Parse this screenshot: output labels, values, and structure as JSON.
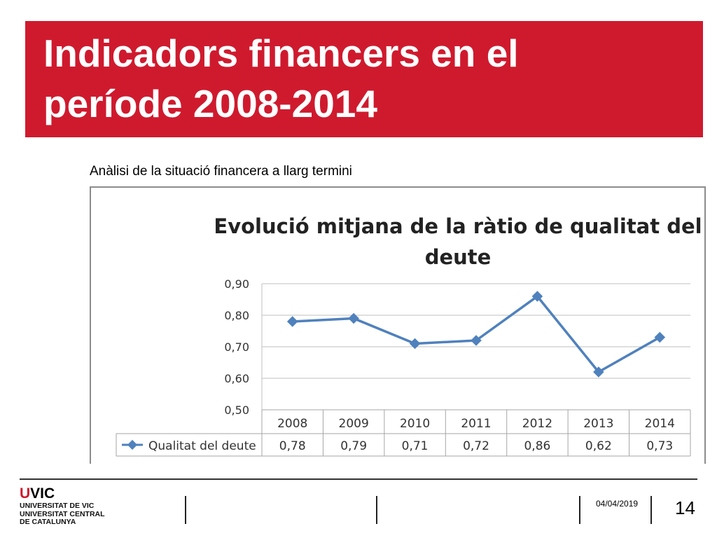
{
  "slide": {
    "title_line1": "Indicadors financers en el",
    "title_line2": "període 2008-2014",
    "subtitle": "Anàlisi de la situació financera a llarg termini",
    "date": "04/04/2019",
    "page_number": "14",
    "accent_color": "#cf1a2e"
  },
  "logo": {
    "mark_u": "U",
    "mark_rest": "VIC",
    "line1": "UNIVERSITAT DE VIC",
    "line2": "UNIVERSITAT CENTRAL",
    "line3": "DE CATALUNYA"
  },
  "chart_data": {
    "type": "line",
    "title_line1": "Evolució mitjana de la ràtio de qualitat del",
    "title_line2": "deute",
    "categories": [
      "2008",
      "2009",
      "2010",
      "2011",
      "2012",
      "2013",
      "2014"
    ],
    "series": [
      {
        "name": "Qualitat del deute",
        "values": [
          0.78,
          0.79,
          0.71,
          0.72,
          0.86,
          0.62,
          0.73
        ],
        "value_labels": [
          "0,78",
          "0,79",
          "0,71",
          "0,72",
          "0,86",
          "0,62",
          "0,73"
        ],
        "color": "#4f81bd"
      }
    ],
    "ylim": [
      0.5,
      0.9
    ],
    "yticks": [
      0.9,
      0.8,
      0.7,
      0.6,
      0.5
    ],
    "ytick_labels": [
      "0,90",
      "0,80",
      "0,70",
      "0,60",
      "0,50"
    ],
    "grid": true,
    "legend_placement": "data-table",
    "xlabel": "",
    "ylabel": ""
  }
}
